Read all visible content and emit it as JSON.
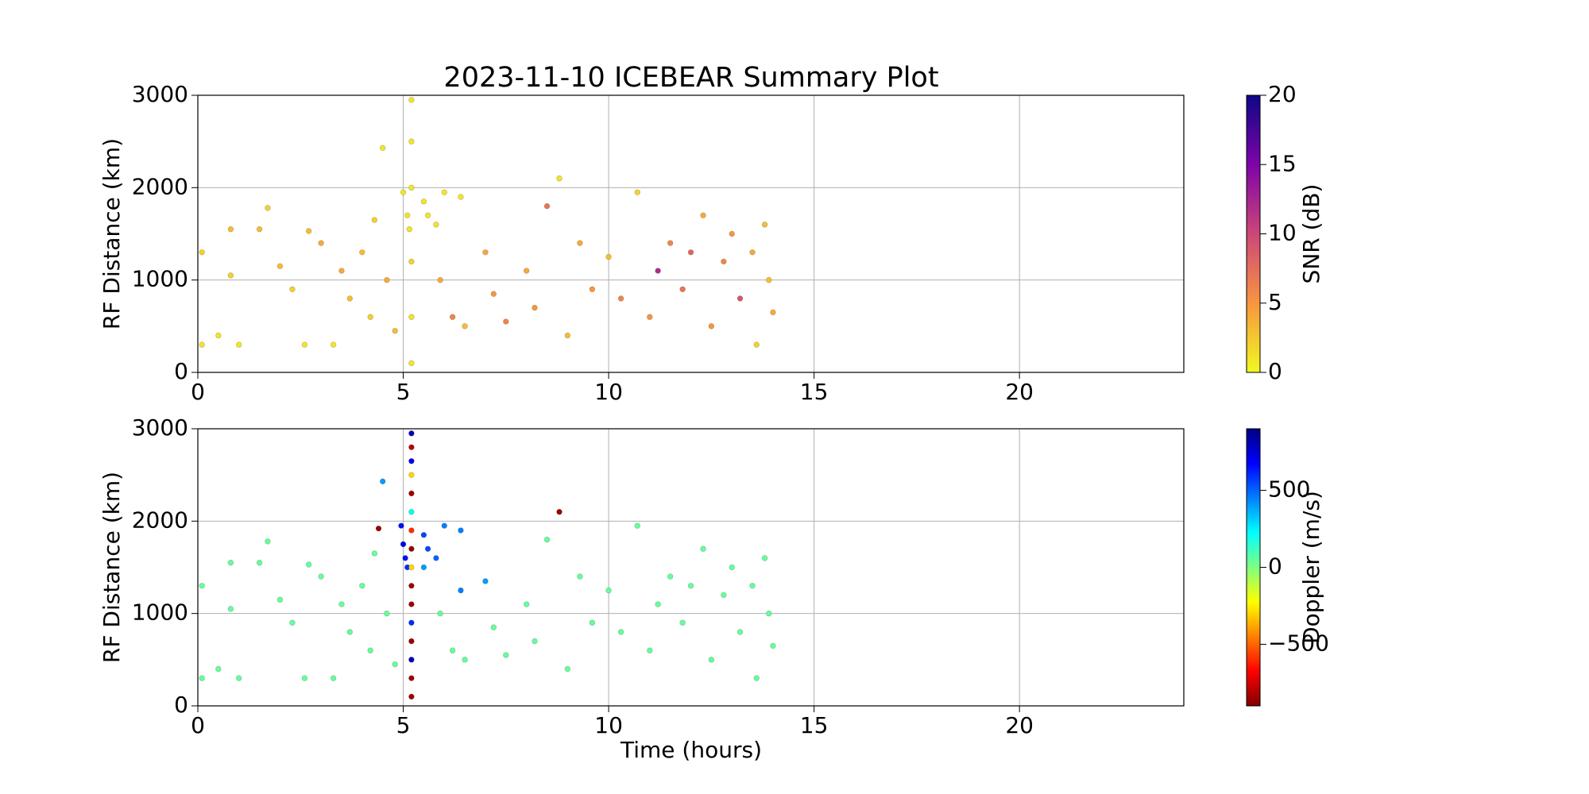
{
  "chart_data": [
    {
      "type": "scatter",
      "title": "2023-11-10 ICEBEAR Summary Plot",
      "ylabel": "RF Distance (km)",
      "xlim": [
        0,
        24
      ],
      "xticks": [
        0,
        5,
        10,
        15,
        20
      ],
      "ylim": [
        0,
        3000
      ],
      "yticks": [
        0,
        1000,
        2000,
        3000
      ],
      "grid": true,
      "colorbar": {
        "label": "SNR (dB)",
        "lim": [
          0,
          20
        ],
        "ticks": [
          0,
          5,
          10,
          15,
          20
        ],
        "colormap": [
          "#f0f921",
          "#f89540",
          "#cc4778",
          "#7e03a8",
          "#0d0887"
        ]
      },
      "x": [
        0.1,
        0.1,
        0.5,
        0.8,
        0.8,
        1.0,
        1.5,
        1.7,
        2.0,
        2.3,
        2.6,
        2.7,
        3.0,
        3.3,
        3.5,
        3.7,
        4.0,
        4.2,
        4.3,
        4.5,
        4.6,
        4.8,
        5.0,
        5.1,
        5.15,
        5.2,
        5.2,
        5.2,
        5.2,
        5.2,
        5.2,
        5.5,
        5.6,
        5.8,
        6.0,
        5.9,
        6.2,
        6.4,
        6.5,
        7.0,
        7.2,
        7.5,
        8.0,
        8.2,
        8.5,
        8.8,
        9.0,
        9.3,
        9.6,
        10.0,
        10.3,
        10.7,
        11.0,
        11.2,
        11.5,
        11.8,
        12.0,
        12.3,
        12.5,
        12.8,
        13.0,
        13.2,
        13.5,
        13.6,
        13.8,
        13.9,
        14.0
      ],
      "values": [
        300,
        1300,
        400,
        1550,
        1050,
        300,
        1550,
        1780,
        1150,
        900,
        300,
        1530,
        1400,
        300,
        1100,
        800,
        1300,
        600,
        1650,
        2430,
        1000,
        450,
        1950,
        1700,
        1550,
        2950,
        2500,
        2000,
        1200,
        600,
        100,
        1850,
        1700,
        1600,
        1950,
        1000,
        600,
        1900,
        500,
        1300,
        850,
        550,
        1100,
        700,
        1800,
        2100,
        400,
        1400,
        900,
        1250,
        800,
        1950,
        600,
        1100,
        1400,
        900,
        1300,
        1700,
        500,
        1200,
        1500,
        800,
        1300,
        300,
        1600,
        1000,
        650
      ],
      "c": [
        1,
        2,
        1,
        3,
        2,
        1,
        3,
        2,
        3,
        2,
        1,
        3,
        4,
        1,
        4,
        3,
        3,
        2,
        2,
        1,
        4,
        3,
        1,
        1,
        1,
        1,
        1,
        1,
        2,
        1,
        1,
        1,
        1,
        1,
        1,
        4,
        6,
        1,
        3,
        4,
        5,
        6,
        4,
        5,
        7,
        1,
        3,
        4,
        5,
        3,
        6,
        2,
        5,
        12,
        6,
        7,
        8,
        4,
        5,
        6,
        5,
        9,
        4,
        2,
        3,
        3,
        4
      ]
    },
    {
      "type": "scatter",
      "ylabel": "RF Distance (km)",
      "xlabel": "Time (hours)",
      "xlim": [
        0,
        24
      ],
      "xticks": [
        0,
        5,
        10,
        15,
        20
      ],
      "ylim": [
        0,
        3000
      ],
      "yticks": [
        0,
        1000,
        2000,
        3000
      ],
      "grid": true,
      "colorbar": {
        "label": "Doppler (m/s)",
        "lim": [
          -900,
          900
        ],
        "ticks": [
          {
            "value": -500,
            "label": "−500"
          },
          0,
          500
        ],
        "colormap": [
          "#800000",
          "#ff0000",
          "#ff8000",
          "#ffff00",
          "#80ff80",
          "#00ffff",
          "#0080ff",
          "#0000ff",
          "#000080"
        ]
      },
      "x": [
        0.1,
        0.1,
        0.5,
        0.8,
        0.8,
        1.0,
        1.5,
        1.7,
        2.0,
        2.3,
        2.6,
        2.7,
        3.0,
        3.3,
        3.5,
        3.7,
        4.0,
        4.2,
        4.3,
        4.5,
        4.4,
        4.6,
        4.8,
        4.95,
        5.0,
        5.05,
        5.1,
        5.2,
        5.2,
        5.2,
        5.2,
        5.2,
        5.2,
        5.2,
        5.2,
        5.2,
        5.2,
        5.2,
        5.2,
        5.2,
        5.2,
        5.2,
        5.2,
        5.5,
        5.6,
        5.8,
        6.0,
        5.5,
        6.4,
        6.4,
        7.0,
        5.9,
        6.2,
        6.5,
        7.2,
        7.5,
        8.0,
        8.2,
        8.5,
        8.8,
        9.0,
        9.3,
        9.6,
        10.0,
        10.3,
        10.7,
        11.0,
        11.2,
        11.5,
        11.8,
        12.0,
        12.3,
        12.5,
        12.8,
        13.0,
        13.2,
        13.5,
        13.6,
        13.8,
        13.9,
        14.0
      ],
      "values": [
        300,
        1300,
        400,
        1550,
        1050,
        300,
        1550,
        1780,
        1150,
        900,
        300,
        1530,
        1400,
        300,
        1100,
        800,
        1300,
        600,
        1650,
        2430,
        1920,
        1000,
        450,
        1950,
        1750,
        1600,
        1500,
        2950,
        2800,
        2650,
        2500,
        2300,
        2100,
        1900,
        1700,
        1500,
        1300,
        1100,
        900,
        700,
        500,
        300,
        100,
        1850,
        1700,
        1600,
        1950,
        1500,
        1900,
        1250,
        1350,
        1000,
        600,
        500,
        850,
        550,
        1100,
        700,
        1800,
        2100,
        400,
        1400,
        900,
        1250,
        800,
        1950,
        600,
        1100,
        1400,
        900,
        1300,
        1700,
        500,
        1200,
        1500,
        800,
        1300,
        300,
        1600,
        1000,
        650
      ],
      "c": [
        50,
        50,
        50,
        50,
        50,
        50,
        50,
        50,
        50,
        50,
        50,
        50,
        50,
        50,
        50,
        50,
        50,
        50,
        50,
        400,
        -850,
        50,
        50,
        650,
        700,
        650,
        600,
        800,
        -800,
        700,
        -300,
        -850,
        200,
        -600,
        -850,
        -300,
        -850,
        -850,
        600,
        -850,
        800,
        -850,
        -850,
        550,
        550,
        500,
        450,
        400,
        450,
        450,
        400,
        50,
        50,
        50,
        50,
        50,
        50,
        50,
        50,
        -850,
        50,
        50,
        50,
        50,
        50,
        50,
        50,
        50,
        50,
        50,
        50,
        50,
        50,
        50,
        50,
        50,
        50,
        50,
        50,
        50,
        50
      ]
    }
  ]
}
